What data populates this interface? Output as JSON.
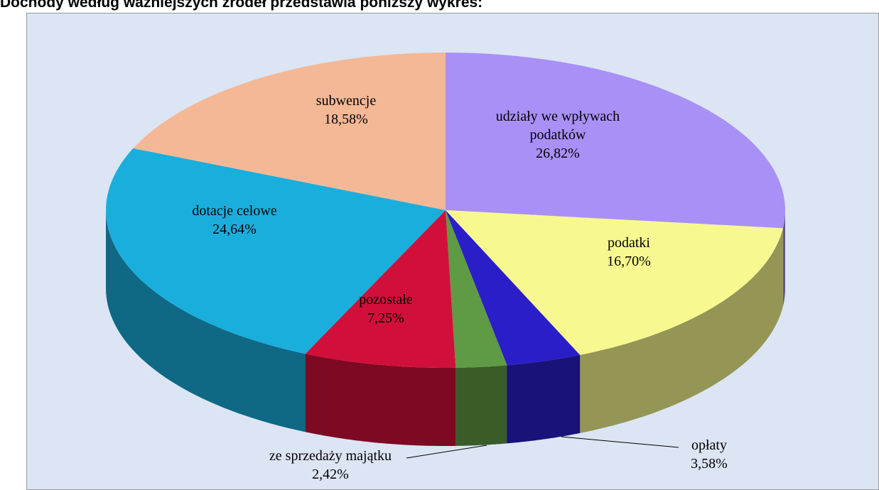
{
  "chart_data": {
    "type": "pie3d",
    "title": "Dochody według ważniejszych źródeł przedstawia poniższy wykres:",
    "categories": [
      "udziały we wpływach podatków",
      "podatki",
      "opłaty",
      "ze sprzedaży majątku",
      "pozostałe",
      "dotacje celowe",
      "subwencje"
    ],
    "values": [
      26.82,
      16.7,
      3.58,
      2.42,
      7.25,
      24.64,
      18.58
    ],
    "value_labels": [
      "26,82%",
      "16,70%",
      "3,58%",
      "2,42%",
      "7,25%",
      "24,64%",
      "18,58%"
    ],
    "colors": [
      "#a990f6",
      "#f8f890",
      "#2a1ec8",
      "#5f9a45",
      "#d0103a",
      "#1aaedc",
      "#f4b896"
    ]
  }
}
